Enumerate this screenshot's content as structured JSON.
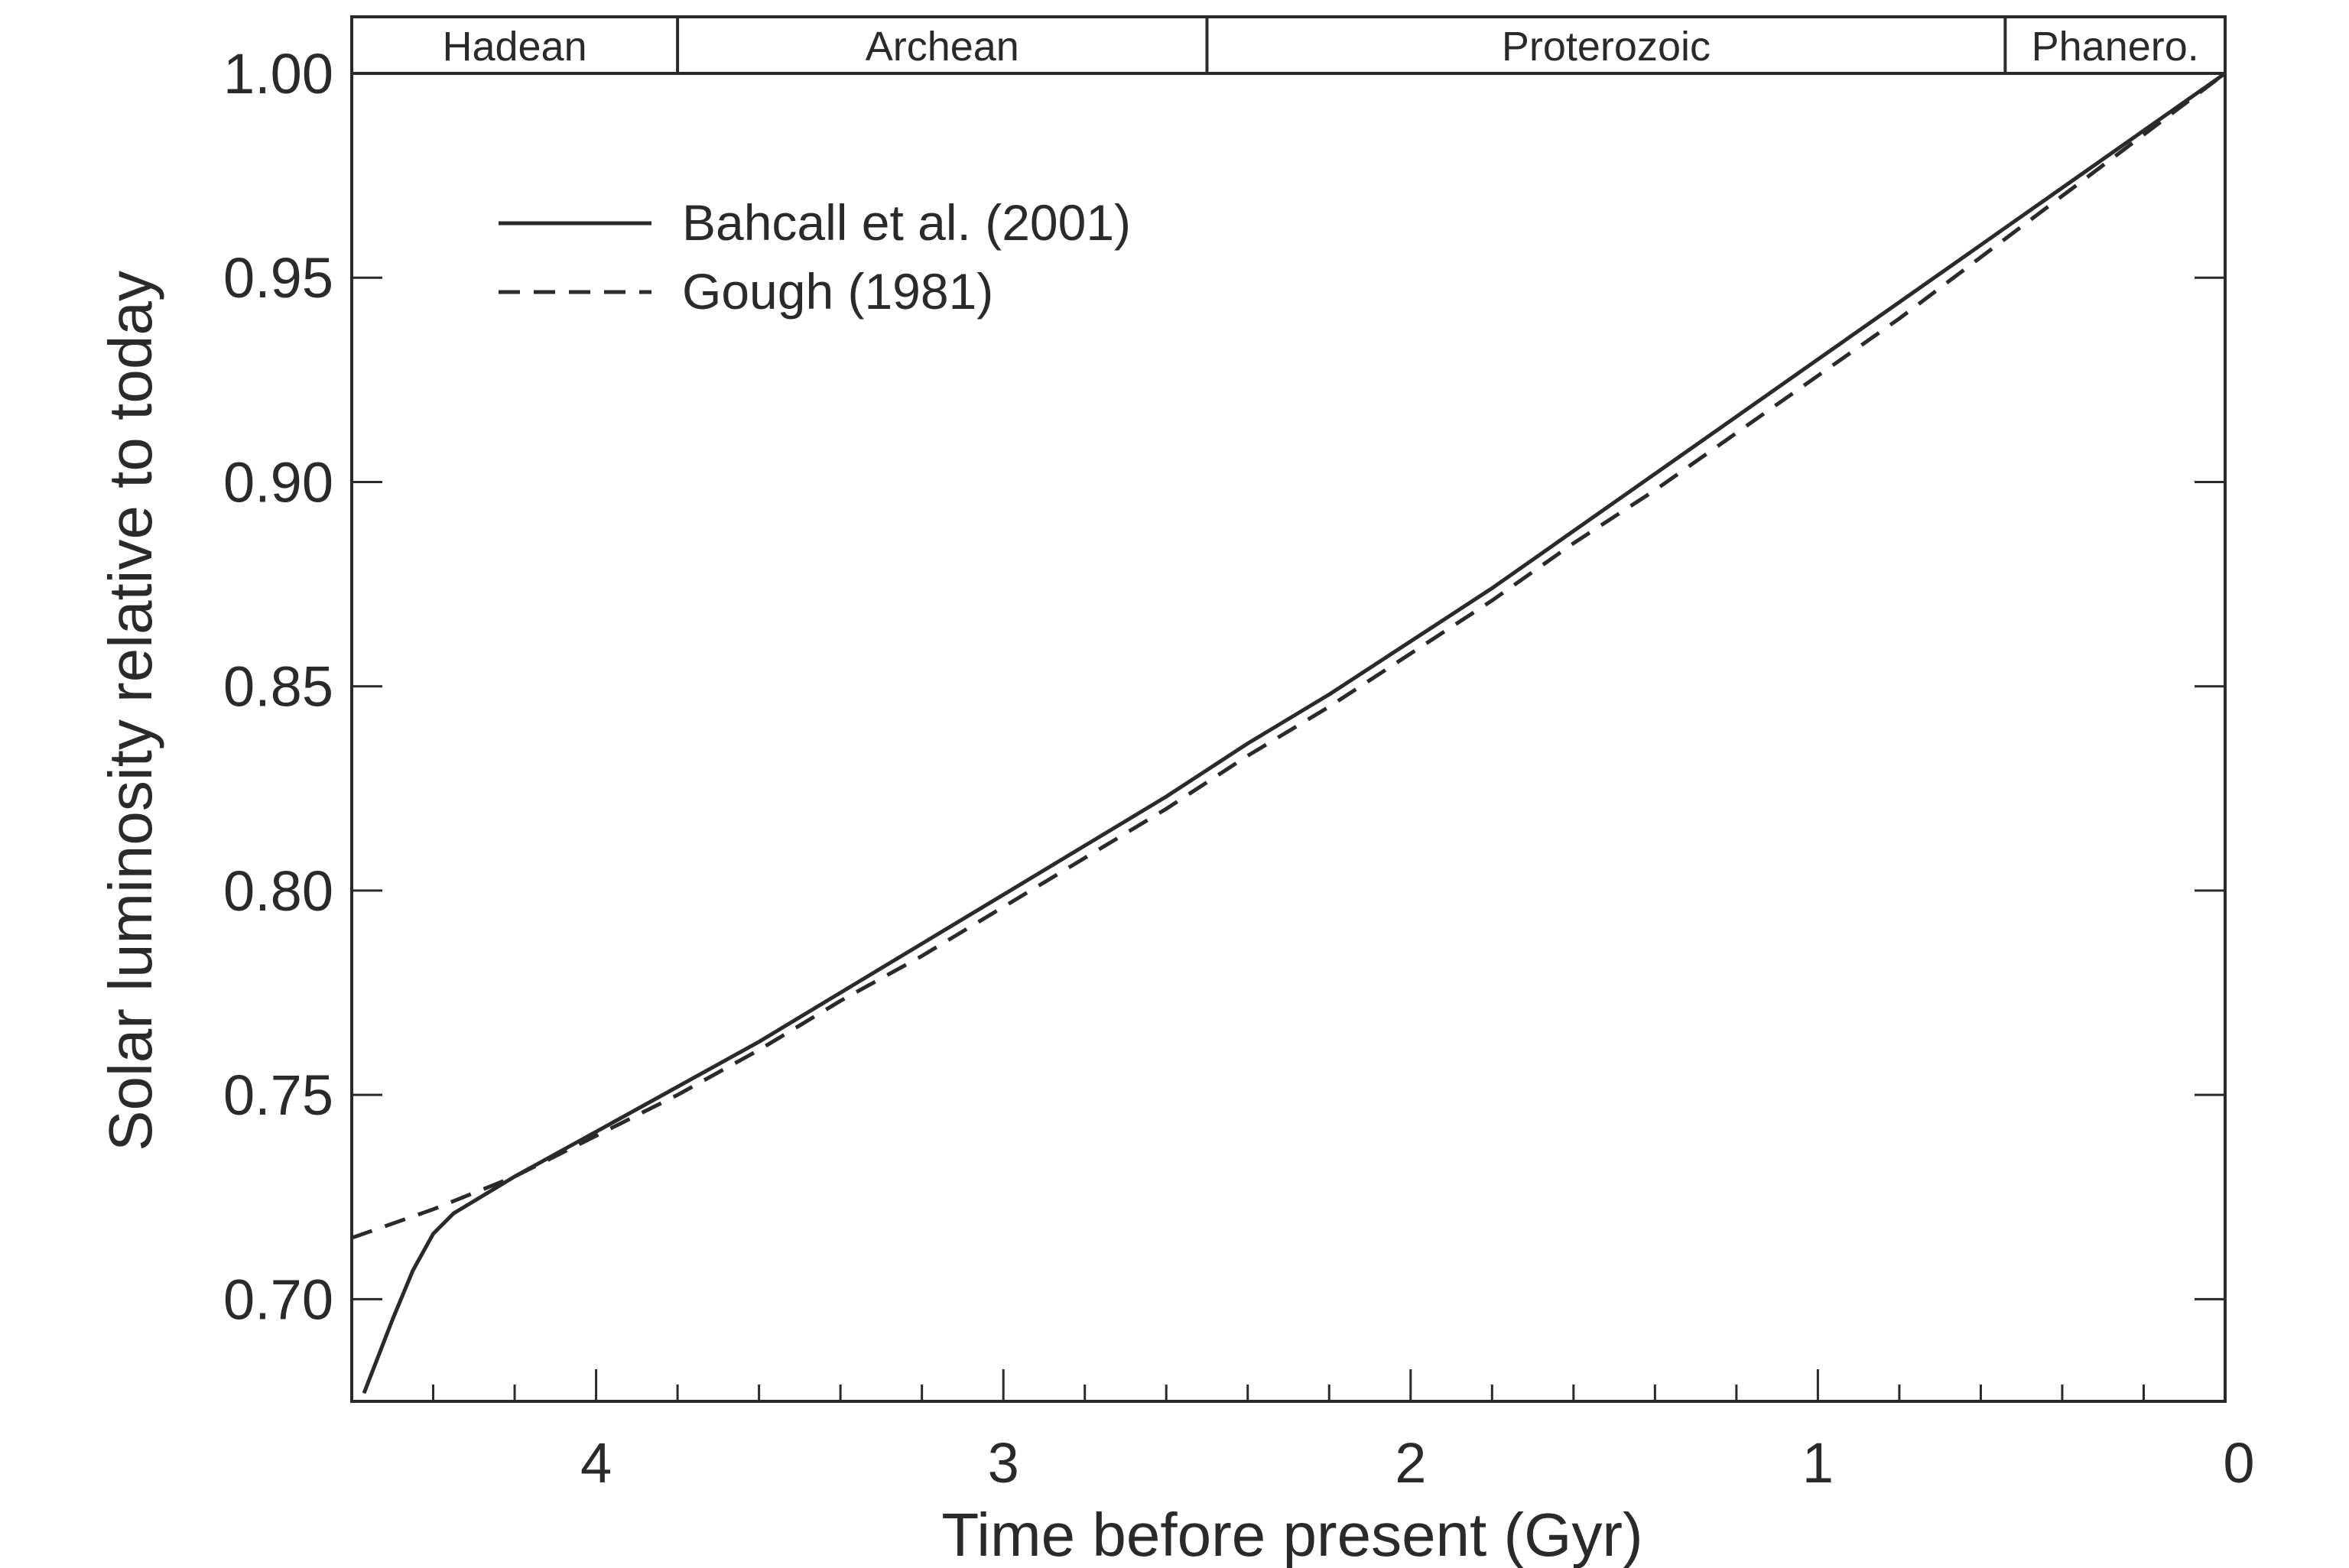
{
  "chart_data": {
    "type": "line",
    "xlabel": "Time before present  (Gyr)",
    "ylabel": "Solar luminosity relative to today",
    "xlim": [
      4.6,
      0
    ],
    "ylim": [
      0.675,
      1.0
    ],
    "x_reversed": true,
    "xticks": [
      {
        "value": 4,
        "label": "4"
      },
      {
        "value": 3,
        "label": "3"
      },
      {
        "value": 2,
        "label": "2"
      },
      {
        "value": 1,
        "label": "1"
      },
      {
        "value": 0,
        "label": "0"
      }
    ],
    "x_minor_ticks": [
      4.4,
      4.2,
      3.8,
      3.6,
      3.4,
      3.2,
      2.8,
      2.6,
      2.4,
      2.2,
      1.8,
      1.6,
      1.4,
      1.2,
      0.8,
      0.6,
      0.4,
      0.2
    ],
    "yticks": [
      {
        "value": 0.7,
        "label": "0.70"
      },
      {
        "value": 0.75,
        "label": "0.75"
      },
      {
        "value": 0.8,
        "label": "0.80"
      },
      {
        "value": 0.85,
        "label": "0.85"
      },
      {
        "value": 0.9,
        "label": "0.90"
      },
      {
        "value": 0.95,
        "label": "0.95"
      },
      {
        "value": 1.0,
        "label": "1.00"
      }
    ],
    "eras": [
      {
        "name": "Hadean",
        "start": 4.6,
        "end": 3.8
      },
      {
        "name": "Archean",
        "start": 3.8,
        "end": 2.5
      },
      {
        "name": "Proterozoic",
        "start": 2.5,
        "end": 0.54
      },
      {
        "name": "Phanero.",
        "start": 0.54,
        "end": 0
      }
    ],
    "legend": {
      "placement": "top-left"
    },
    "grid": false,
    "series": [
      {
        "name": "Bahcall et al. (2001)",
        "style": "solid",
        "color": "#2a2a2a",
        "x": [
          4.57,
          4.5,
          4.45,
          4.4,
          4.35,
          4.3,
          4.2,
          4.0,
          3.8,
          3.6,
          3.4,
          3.2,
          3.0,
          2.8,
          2.6,
          2.4,
          2.2,
          2.0,
          1.8,
          1.6,
          1.4,
          1.2,
          1.0,
          0.8,
          0.6,
          0.4,
          0.2,
          0.0
        ],
        "y": [
          0.677,
          0.695,
          0.707,
          0.716,
          0.721,
          0.724,
          0.73,
          0.741,
          0.752,
          0.763,
          0.775,
          0.787,
          0.799,
          0.811,
          0.823,
          0.836,
          0.848,
          0.861,
          0.874,
          0.888,
          0.902,
          0.916,
          0.93,
          0.944,
          0.958,
          0.972,
          0.986,
          1.0
        ]
      },
      {
        "name": "Gough (1981)",
        "style": "dashed",
        "color": "#2a2a2a",
        "x": [
          4.6,
          4.4,
          4.2,
          4.0,
          3.8,
          3.6,
          3.4,
          3.2,
          3.0,
          2.8,
          2.6,
          2.4,
          2.2,
          2.0,
          1.8,
          1.6,
          1.4,
          1.2,
          1.0,
          0.8,
          0.6,
          0.4,
          0.2,
          0.0
        ],
        "y": [
          0.715,
          0.722,
          0.73,
          0.74,
          0.75,
          0.761,
          0.773,
          0.784,
          0.796,
          0.808,
          0.82,
          0.833,
          0.845,
          0.858,
          0.871,
          0.885,
          0.898,
          0.912,
          0.926,
          0.94,
          0.955,
          0.97,
          0.985,
          1.0
        ]
      }
    ]
  }
}
